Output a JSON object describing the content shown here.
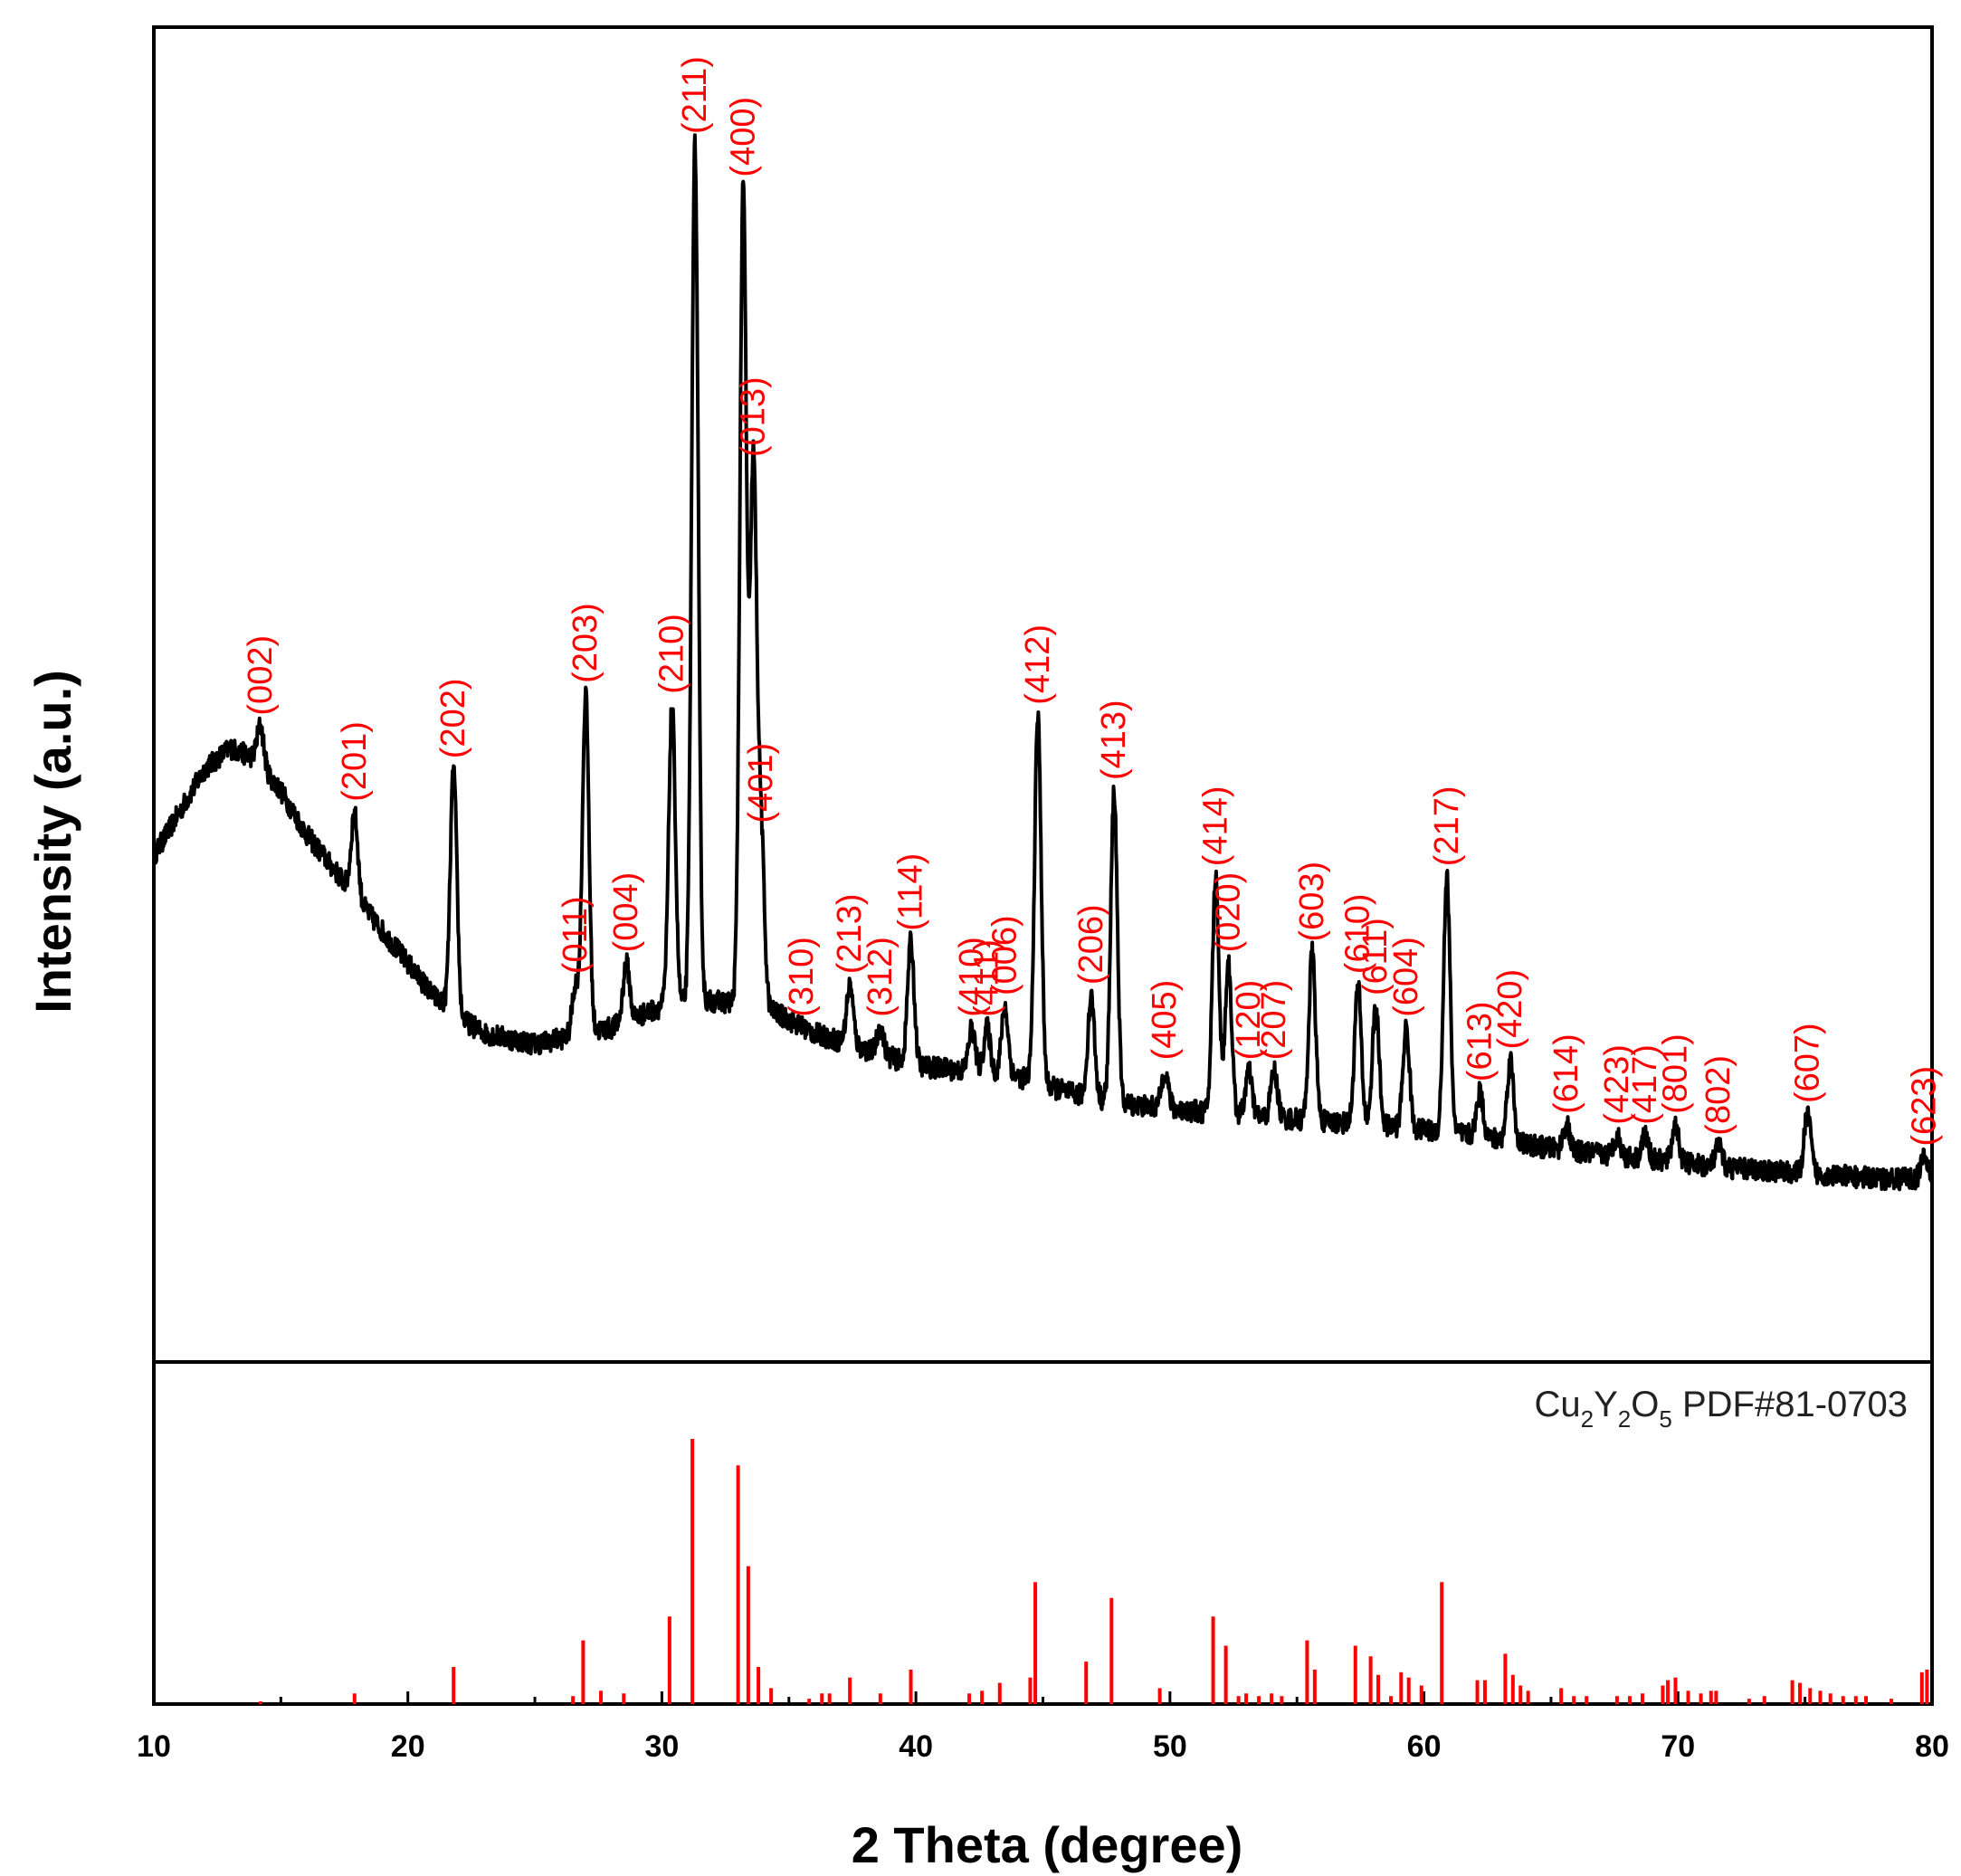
{
  "chart_data": {
    "type": "line",
    "title": "",
    "xlabel": "2 Theta (degree)",
    "ylabel": "Intensity (a.u.)",
    "xlim": [
      10,
      80
    ],
    "xticks": [
      10,
      20,
      30,
      40,
      50,
      60,
      70,
      80
    ],
    "xtick_labels": [
      "10",
      "20",
      "30",
      "40",
      "50",
      "60",
      "70",
      "80"
    ],
    "intensity_ylim": [
      0,
      1.0
    ],
    "line_color": "#000000",
    "label_color": "#ff0000",
    "reference_color": "#ff0000",
    "pattern": {
      "name": "XRD pattern",
      "background": [
        [
          10,
          0.34
        ],
        [
          11,
          0.38
        ],
        [
          12,
          0.42
        ],
        [
          13,
          0.44
        ],
        [
          14,
          0.43
        ],
        [
          15,
          0.4
        ],
        [
          16,
          0.36
        ],
        [
          17,
          0.33
        ],
        [
          18,
          0.3
        ],
        [
          19,
          0.27
        ],
        [
          20,
          0.24
        ],
        [
          21,
          0.21
        ],
        [
          22,
          0.19
        ],
        [
          23,
          0.175
        ],
        [
          25,
          0.165
        ],
        [
          27,
          0.175
        ],
        [
          28,
          0.18
        ],
        [
          30,
          0.2
        ],
        [
          32,
          0.205
        ],
        [
          34,
          0.2
        ],
        [
          36,
          0.175
        ],
        [
          38,
          0.16
        ],
        [
          40,
          0.145
        ],
        [
          42,
          0.14
        ],
        [
          44,
          0.135
        ],
        [
          46,
          0.12
        ],
        [
          48,
          0.11
        ],
        [
          50,
          0.105
        ],
        [
          52,
          0.1
        ],
        [
          55,
          0.095
        ],
        [
          58,
          0.09
        ],
        [
          60,
          0.085
        ],
        [
          62,
          0.08
        ],
        [
          65,
          0.068
        ],
        [
          68,
          0.06
        ],
        [
          70,
          0.055
        ],
        [
          72,
          0.05
        ],
        [
          75,
          0.045
        ],
        [
          78,
          0.04
        ],
        [
          80,
          0.04
        ]
      ],
      "peaks": [
        {
          "hkl": "(002)",
          "two_theta": 14.2,
          "intensity": 0.46
        },
        {
          "hkl": "(201)",
          "two_theta": 17.9,
          "intensity": 0.38
        },
        {
          "hkl": "(202)",
          "two_theta": 21.8,
          "intensity": 0.42
        },
        {
          "hkl": "(011)",
          "two_theta": 26.6,
          "intensity": 0.22
        },
        {
          "hkl": "(203)",
          "two_theta": 27.0,
          "intensity": 0.49
        },
        {
          "hkl": "(004)",
          "two_theta": 28.6,
          "intensity": 0.24
        },
        {
          "hkl": "(210)",
          "two_theta": 30.4,
          "intensity": 0.48
        },
        {
          "hkl": "(211)",
          "two_theta": 31.3,
          "intensity": 1.0
        },
        {
          "hkl": "(400)",
          "two_theta": 33.2,
          "intensity": 0.96
        },
        {
          "hkl": "(013)",
          "two_theta": 33.6,
          "intensity": 0.7
        },
        {
          "hkl": "(401)",
          "two_theta": 33.9,
          "intensity": 0.36
        },
        {
          "hkl": "(310)",
          "two_theta": 35.5,
          "intensity": 0.18
        },
        {
          "hkl": "(213)",
          "two_theta": 37.4,
          "intensity": 0.22
        },
        {
          "hkl": "(312)",
          "two_theta": 38.6,
          "intensity": 0.18
        },
        {
          "hkl": "(114)",
          "two_theta": 39.8,
          "intensity": 0.26
        },
        {
          "hkl": "(410)",
          "two_theta": 42.2,
          "intensity": 0.18
        },
        {
          "hkl": "(411)",
          "two_theta": 42.8,
          "intensity": 0.18
        },
        {
          "hkl": "(006)",
          "two_theta": 43.5,
          "intensity": 0.2
        },
        {
          "hkl": "(412)",
          "two_theta": 44.8,
          "intensity": 0.47
        },
        {
          "hkl": "(206)",
          "two_theta": 46.9,
          "intensity": 0.21
        },
        {
          "hkl": "(413)",
          "two_theta": 47.8,
          "intensity": 0.4
        },
        {
          "hkl": "(405)",
          "two_theta": 49.8,
          "intensity": 0.14
        },
        {
          "hkl": "(414)",
          "two_theta": 51.8,
          "intensity": 0.32
        },
        {
          "hkl": "(020)",
          "two_theta": 52.3,
          "intensity": 0.24
        },
        {
          "hkl": "(120)",
          "two_theta": 53.1,
          "intensity": 0.14
        },
        {
          "hkl": "(207)",
          "two_theta": 54.1,
          "intensity": 0.14
        },
        {
          "hkl": "(603)",
          "two_theta": 55.6,
          "intensity": 0.25
        },
        {
          "hkl": "(610)",
          "two_theta": 57.4,
          "intensity": 0.22
        },
        {
          "hkl": "(611)",
          "two_theta": 58.1,
          "intensity": 0.2
        },
        {
          "hkl": "(604)",
          "two_theta": 59.3,
          "intensity": 0.18
        },
        {
          "hkl": "(217)",
          "two_theta": 60.9,
          "intensity": 0.32
        },
        {
          "hkl": "(613)",
          "two_theta": 62.2,
          "intensity": 0.12
        },
        {
          "hkl": "(420)",
          "two_theta": 63.4,
          "intensity": 0.15
        },
        {
          "hkl": "(614)",
          "two_theta": 65.6,
          "intensity": 0.09
        },
        {
          "hkl": "(423)",
          "two_theta": 67.6,
          "intensity": 0.08
        },
        {
          "hkl": "(417)",
          "two_theta": 68.7,
          "intensity": 0.08
        },
        {
          "hkl": "(801)",
          "two_theta": 69.9,
          "intensity": 0.09
        },
        {
          "hkl": "(802)",
          "two_theta": 71.6,
          "intensity": 0.07
        },
        {
          "hkl": "(607)",
          "two_theta": 75.1,
          "intensity": 0.1
        },
        {
          "hkl": "(623)",
          "two_theta": 79.7,
          "intensity": 0.06
        }
      ]
    },
    "label_order_note": "labels are in the same order as peaks",
    "reference": {
      "formula_parts": [
        {
          "text": "Cu",
          "sub": false
        },
        {
          "text": "2",
          "sub": true
        },
        {
          "text": "Y",
          "sub": false
        },
        {
          "text": "2",
          "sub": true
        },
        {
          "text": "O",
          "sub": false
        },
        {
          "text": "5",
          "sub": true
        },
        {
          "text": " PDF#81-0703",
          "sub": false
        }
      ],
      "label": "Cu2Y2O5 PDF#81-0703",
      "ylim": [
        0,
        100
      ],
      "sticks": [
        [
          14.2,
          1
        ],
        [
          17.9,
          4
        ],
        [
          21.8,
          14
        ],
        [
          26.5,
          3
        ],
        [
          26.9,
          24
        ],
        [
          27.6,
          5
        ],
        [
          28.5,
          4
        ],
        [
          30.3,
          33
        ],
        [
          31.2,
          100
        ],
        [
          33.0,
          90
        ],
        [
          33.4,
          52
        ],
        [
          33.8,
          14
        ],
        [
          34.3,
          6
        ],
        [
          35.8,
          2
        ],
        [
          36.3,
          4
        ],
        [
          36.6,
          4
        ],
        [
          37.4,
          10
        ],
        [
          38.6,
          4
        ],
        [
          39.8,
          13
        ],
        [
          42.1,
          4
        ],
        [
          42.6,
          5
        ],
        [
          43.3,
          8
        ],
        [
          44.5,
          10
        ],
        [
          44.7,
          46
        ],
        [
          46.7,
          16
        ],
        [
          47.7,
          40
        ],
        [
          49.6,
          6
        ],
        [
          51.7,
          33
        ],
        [
          52.2,
          22
        ],
        [
          52.7,
          3
        ],
        [
          53.0,
          4
        ],
        [
          53.5,
          3
        ],
        [
          54.0,
          4
        ],
        [
          54.4,
          3
        ],
        [
          55.4,
          24
        ],
        [
          55.7,
          13
        ],
        [
          57.3,
          22
        ],
        [
          57.9,
          18
        ],
        [
          58.2,
          11
        ],
        [
          58.7,
          3
        ],
        [
          59.1,
          12
        ],
        [
          59.4,
          10
        ],
        [
          59.9,
          7
        ],
        [
          60.7,
          46
        ],
        [
          62.1,
          9
        ],
        [
          62.4,
          9
        ],
        [
          63.2,
          19
        ],
        [
          63.5,
          11
        ],
        [
          63.8,
          7
        ],
        [
          64.1,
          5
        ],
        [
          65.4,
          6
        ],
        [
          65.9,
          3
        ],
        [
          66.4,
          3
        ],
        [
          67.6,
          3
        ],
        [
          68.1,
          3
        ],
        [
          68.6,
          4
        ],
        [
          69.4,
          7
        ],
        [
          69.6,
          9
        ],
        [
          69.9,
          10
        ],
        [
          70.4,
          5
        ],
        [
          70.9,
          4
        ],
        [
          71.3,
          5
        ],
        [
          71.5,
          5
        ],
        [
          72.8,
          2
        ],
        [
          73.4,
          3
        ],
        [
          74.5,
          9
        ],
        [
          74.8,
          8
        ],
        [
          75.2,
          6
        ],
        [
          75.6,
          5
        ],
        [
          76.0,
          4
        ],
        [
          76.5,
          3
        ],
        [
          77.0,
          3
        ],
        [
          77.4,
          3
        ],
        [
          78.4,
          2
        ],
        [
          79.6,
          12
        ],
        [
          79.8,
          13
        ]
      ]
    }
  }
}
